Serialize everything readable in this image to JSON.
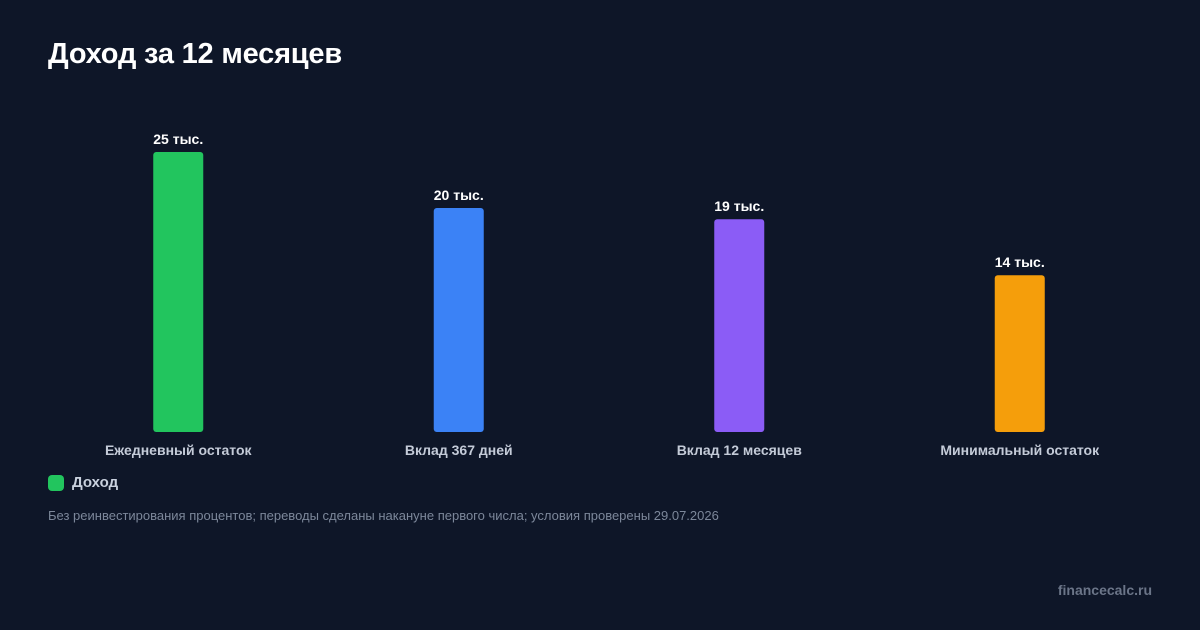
{
  "header": {
    "title": "Доход за 12 месяцев"
  },
  "chart_data": {
    "type": "bar",
    "title": "Доход за 12 месяцев",
    "categories": [
      "Ежедневный остаток",
      "Вклад 367 дней",
      "Вклад 12 месяцев",
      "Минимальный остаток"
    ],
    "values": [
      25000,
      20000,
      19000,
      14000
    ],
    "value_labels": [
      "25 тыс.",
      "20 тыс.",
      "19 тыс.",
      "14 тыс."
    ],
    "bar_colors": [
      "#22c55e",
      "#3b82f6",
      "#8b5cf6",
      "#f59e0b"
    ],
    "ylim": [
      0,
      25000
    ],
    "grid": false,
    "legend_position": "bottom-left",
    "series": [
      {
        "name": "Доход",
        "values": [
          25000,
          20000,
          19000,
          14000
        ],
        "color": "#22c55e"
      }
    ]
  },
  "legend": {
    "label": "Доход",
    "color": "#22c55e"
  },
  "footnote": "Без реинвестирования процентов; переводы сделаны накануне первого числа; условия проверены 29.07.2026",
  "brand": "financecalc.ru"
}
